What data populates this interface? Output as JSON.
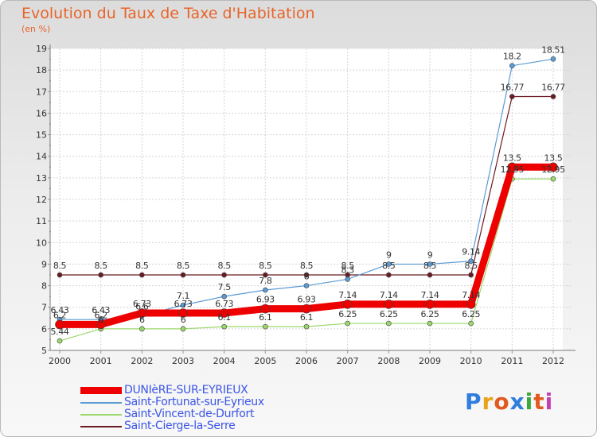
{
  "title": "Evolution du Taux de Taxe d'Habitation",
  "unit": "(en %)",
  "logo": {
    "text": "Proxiti",
    "colors": [
      "#2f7ddf",
      "#e8a21a",
      "#e05a1f",
      "#2f7ddf",
      "#3aa83a",
      "#e05a1f",
      "#c53fb3"
    ]
  },
  "chart_data": {
    "type": "line",
    "x": [
      "2000",
      "2001",
      "2002",
      "2003",
      "2004",
      "2005",
      "2006",
      "2007",
      "2008",
      "2009",
      "2010",
      "2011",
      "2012"
    ],
    "ylim": [
      5,
      19
    ],
    "yticks": [
      5,
      6,
      7,
      8,
      9,
      10,
      11,
      12,
      13,
      14,
      15,
      16,
      17,
      18,
      19
    ],
    "grid": true,
    "legend_position": "bottom-left",
    "series": [
      {
        "name": "Saint-Cierge-la-Serre",
        "color": "#6b1a22",
        "width": 1.2,
        "values": [
          8.5,
          8.5,
          8.5,
          8.5,
          8.5,
          8.5,
          8.5,
          8.5,
          8.5,
          8.5,
          8.5,
          16.77,
          16.77
        ],
        "labels": [
          "8.5",
          "8.5",
          "8.5",
          "8.5",
          "8.5",
          "8.5",
          "8.5",
          "8.5",
          "8.5",
          "8.5",
          "8.5",
          "16.77",
          "16.77"
        ]
      },
      {
        "name": "Saint-Vincent-de-Durfort",
        "color": "#9bd86a",
        "width": 1.2,
        "values": [
          5.44,
          6.0,
          6.0,
          6.0,
          6.1,
          6.1,
          6.1,
          6.25,
          6.25,
          6.25,
          6.25,
          12.95,
          12.95
        ],
        "labels": [
          "5.44",
          "6",
          "6",
          "6",
          "6.1",
          "6.1",
          "6.1",
          "6.25",
          "6.25",
          "6.25",
          "6.25",
          "12.95",
          "12.95"
        ]
      },
      {
        "name": "Saint-Fortunat-sur-Eyrieux",
        "color": "#5b9bd5",
        "width": 1.2,
        "values": [
          6.43,
          6.43,
          6.6,
          7.1,
          7.5,
          7.8,
          8.0,
          8.3,
          9.0,
          9.0,
          9.14,
          18.2,
          18.51
        ],
        "labels": [
          "6.43",
          "6.43",
          "6.6",
          "7.1",
          "7.5",
          "7.8",
          "8",
          "8.3",
          "9",
          "9",
          "9.14",
          "18.2",
          "18.51"
        ]
      },
      {
        "name": "DUNIèRE-SUR-EYRIEUX",
        "color": "#ee0000",
        "width": 9,
        "values": [
          6.2,
          6.2,
          6.73,
          6.73,
          6.73,
          6.93,
          6.93,
          7.14,
          7.14,
          7.14,
          7.14,
          13.5,
          13.5
        ],
        "labels": [
          "6.2",
          "6.2",
          "6.73",
          "6.73",
          "6.73",
          "6.93",
          "6.93",
          "7.14",
          "7.14",
          "7.14",
          "7.14",
          "13.5",
          "13.5"
        ]
      }
    ],
    "legend": [
      {
        "name": "DUNIèRE-SUR-EYRIEUX",
        "color": "#ee0000"
      },
      {
        "name": "Saint-Fortunat-sur-Eyrieux",
        "color": "#5b9bd5"
      },
      {
        "name": "Saint-Vincent-de-Durfort",
        "color": "#9bd86a"
      },
      {
        "name": "Saint-Cierge-la-Serre",
        "color": "#6b1a22"
      }
    ]
  }
}
